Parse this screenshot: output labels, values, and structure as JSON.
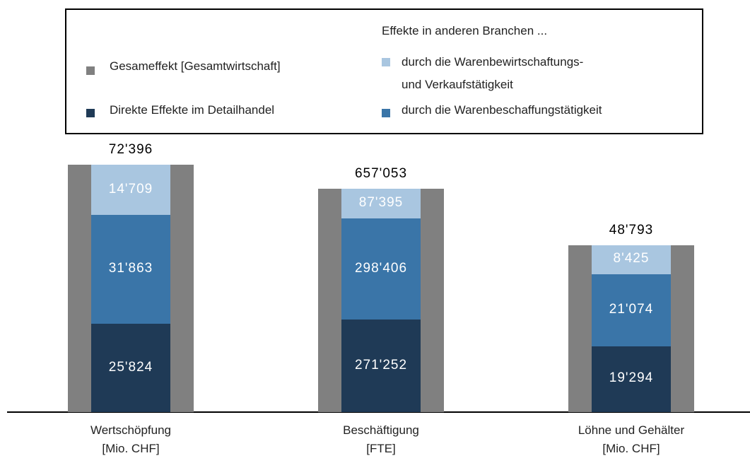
{
  "chart_data": {
    "type": "bar",
    "stacked": true,
    "legend_title": "Effekte in anderen Branchen ...",
    "categories": [
      "Wertschöpfung\n[Mio. CHF]",
      "Beschäftigung\n[FTE]",
      "Löhne und Gehälter\n[Mio. CHF]"
    ],
    "ylims": [
      [
        0,
        72400
      ],
      [
        0,
        727000
      ],
      [
        0,
        72400
      ]
    ],
    "series": [
      {
        "name": "Gesameffekt [Gesamtwirtschaft]",
        "color": "#808080",
        "role": "total",
        "values": [
          72396,
          657053,
          48793
        ],
        "value_labels": [
          "72'396",
          "657'053",
          "48'793"
        ]
      },
      {
        "name": "Direkte Effekte im Detailhandel",
        "color": "#1f3a56",
        "values": [
          25824,
          271252,
          19294
        ],
        "value_labels": [
          "25'824",
          "271'252",
          "19'294"
        ]
      },
      {
        "name": "durch die Warenbeschaffungstätigkeit",
        "color": "#3a75a8",
        "values": [
          31863,
          298406,
          21074
        ],
        "value_labels": [
          "31'863",
          "298'406",
          "21'074"
        ]
      },
      {
        "name": "durch die Warenbewirtschaftungs-\nund Verkaufstätigkeit",
        "color": "#a9c6e0",
        "values": [
          14709,
          87395,
          8425
        ],
        "value_labels": [
          "14'709",
          "87'395",
          "8'425"
        ]
      }
    ]
  }
}
